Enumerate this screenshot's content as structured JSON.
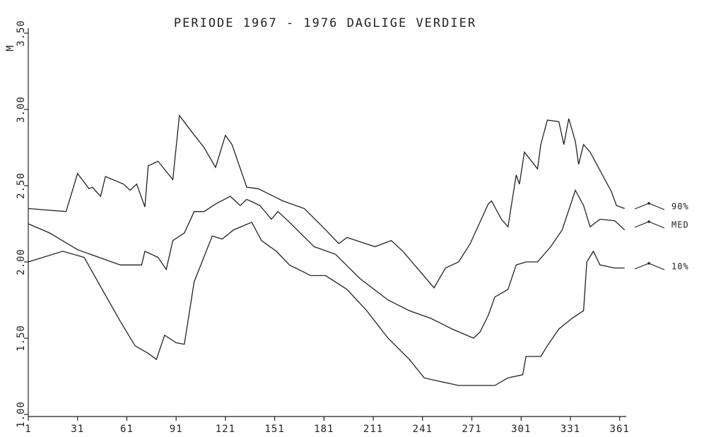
{
  "chart_data": {
    "type": "line",
    "title": "PERIODE  1967 - 1976  DAGLIGE VERDIER",
    "y_label": "M",
    "xlim": [
      1,
      365
    ],
    "xticks": [
      1,
      31,
      61,
      91,
      121,
      151,
      181,
      211,
      241,
      271,
      301,
      331,
      361
    ],
    "ylim": [
      1,
      3.5
    ],
    "yticks": [
      {
        "value": 1,
        "label": "1.00"
      },
      {
        "value": 1.5,
        "label": "1.50"
      },
      {
        "value": 2,
        "label": "2.00"
      },
      {
        "value": 2.5,
        "label": "2.50"
      },
      {
        "value": 3,
        "label": "3.00"
      },
      {
        "value": 3.5,
        "label": "3.50"
      }
    ],
    "legend": "right",
    "series": [
      {
        "name": "90%",
        "color": "#222222",
        "x": [
          1,
          24,
          31,
          38,
          40,
          45,
          48,
          59,
          63,
          67,
          72,
          74,
          80,
          89,
          93,
          100,
          108,
          115,
          121,
          125,
          134,
          141,
          156,
          169,
          182,
          190,
          195,
          212,
          222,
          229,
          248,
          255,
          263,
          270,
          281,
          283,
          289,
          293,
          298,
          300,
          303,
          311,
          313,
          317,
          324,
          327,
          330,
          334,
          336,
          339,
          343,
          356,
          359,
          364
        ],
        "values": [
          2.35,
          2.33,
          2.58,
          2.48,
          2.49,
          2.43,
          2.56,
          2.51,
          2.47,
          2.51,
          2.36,
          2.63,
          2.66,
          2.54,
          2.96,
          2.86,
          2.75,
          2.62,
          2.83,
          2.77,
          2.49,
          2.48,
          2.4,
          2.35,
          2.21,
          2.12,
          2.16,
          2.1,
          2.14,
          2.07,
          1.83,
          1.96,
          2.0,
          2.12,
          2.38,
          2.4,
          2.28,
          2.23,
          2.57,
          2.51,
          2.72,
          2.61,
          2.77,
          2.93,
          2.92,
          2.77,
          2.94,
          2.79,
          2.64,
          2.77,
          2.72,
          2.46,
          2.37,
          2.35
        ]
      },
      {
        "name": "MED",
        "color": "#222222",
        "x": [
          1,
          14,
          31,
          57,
          70,
          72,
          80,
          85,
          89,
          96,
          102,
          108,
          115,
          124,
          130,
          134,
          142,
          149,
          153,
          160,
          175,
          188,
          203,
          220,
          233,
          246,
          259,
          272,
          276,
          281,
          285,
          293,
          298,
          304,
          311,
          319,
          326,
          334,
          339,
          343,
          349,
          358,
          364
        ],
        "values": [
          2.25,
          2.19,
          2.08,
          1.98,
          1.98,
          2.07,
          2.03,
          1.95,
          2.14,
          2.19,
          2.33,
          2.33,
          2.38,
          2.43,
          2.37,
          2.41,
          2.37,
          2.28,
          2.33,
          2.26,
          2.1,
          2.05,
          1.89,
          1.75,
          1.68,
          1.63,
          1.56,
          1.5,
          1.54,
          1.65,
          1.77,
          1.82,
          1.98,
          2.0,
          2.0,
          2.1,
          2.21,
          2.47,
          2.37,
          2.23,
          2.28,
          2.27,
          2.21
        ]
      },
      {
        "name": "10%",
        "color": "#222222",
        "x": [
          1,
          22,
          35,
          46,
          57,
          66,
          74,
          79,
          84,
          91,
          96,
          102,
          113,
          119,
          126,
          137,
          143,
          152,
          160,
          173,
          182,
          195,
          207,
          220,
          233,
          242,
          250,
          263,
          276,
          285,
          293,
          302,
          304,
          313,
          317,
          324,
          332,
          339,
          341,
          345,
          349,
          358,
          364
        ],
        "values": [
          2.0,
          2.07,
          2.03,
          1.82,
          1.61,
          1.45,
          1.4,
          1.36,
          1.52,
          1.47,
          1.46,
          1.87,
          2.17,
          2.15,
          2.21,
          2.26,
          2.14,
          2.07,
          1.98,
          1.91,
          1.91,
          1.82,
          1.68,
          1.5,
          1.36,
          1.24,
          1.22,
          1.19,
          1.19,
          1.19,
          1.24,
          1.26,
          1.38,
          1.38,
          1.45,
          1.56,
          1.63,
          1.68,
          2.0,
          2.07,
          1.98,
          1.96,
          1.96
        ]
      }
    ]
  }
}
